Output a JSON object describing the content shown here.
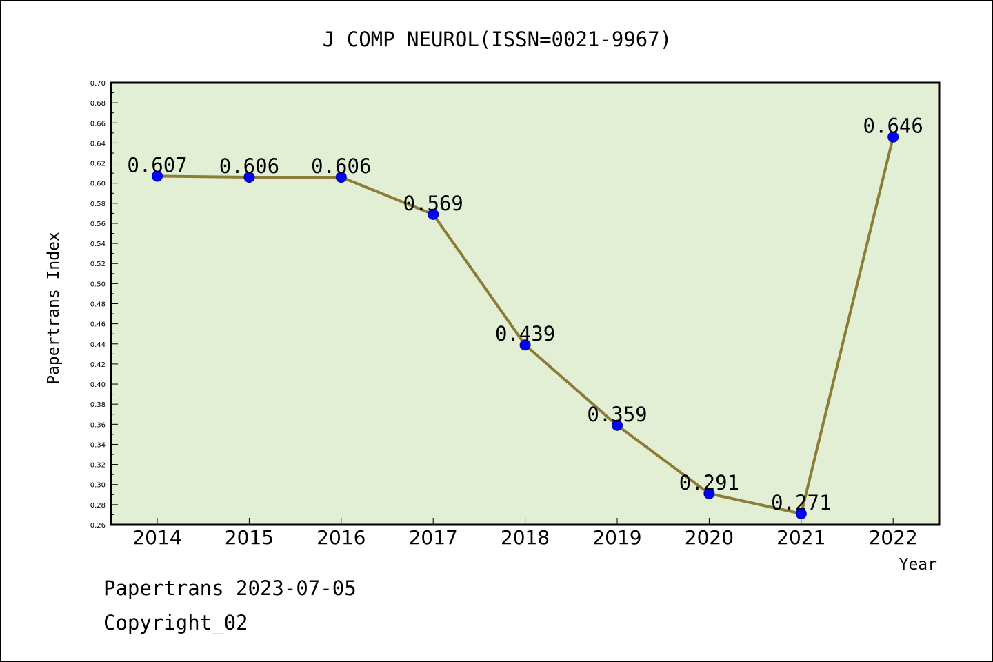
{
  "chart_data": {
    "type": "line",
    "title": "J COMP NEUROL(ISSN=0021-9967)",
    "xlabel": "Year",
    "ylabel": "Papertrans Index",
    "categories": [
      "2014",
      "2015",
      "2016",
      "2017",
      "2018",
      "2019",
      "2020",
      "2021",
      "2022"
    ],
    "series": [
      {
        "values": [
          0.607,
          0.606,
          0.606,
          0.569,
          0.439,
          0.359,
          0.291,
          0.271,
          0.646
        ],
        "data_labels": [
          "0.607",
          "0.606",
          "0.606",
          "0.569",
          "0.439",
          "0.359",
          "0.291",
          "0.271",
          "0.646"
        ]
      }
    ],
    "ylim": [
      0.26,
      0.7
    ],
    "yticks": [
      "0.26",
      "0.28",
      "0.30",
      "0.32",
      "0.34",
      "0.36",
      "0.38",
      "0.40",
      "0.42",
      "0.44",
      "0.46",
      "0.48",
      "0.50",
      "0.52",
      "0.54",
      "0.56",
      "0.58",
      "0.60",
      "0.62",
      "0.64",
      "0.66",
      "0.68",
      "0.70"
    ],
    "grid": false,
    "colors": {
      "plot_background": "#e2efd5",
      "line": "#8b7d35",
      "marker": "#0000ff"
    }
  },
  "footer": {
    "line1": "Papertrans 2023-07-05",
    "line2": "Copyright_02"
  }
}
